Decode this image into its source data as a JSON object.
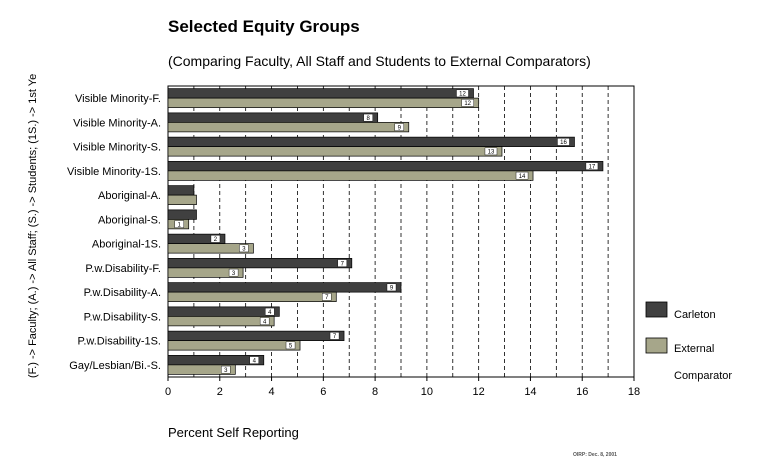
{
  "colors": {
    "carleton": "#404040",
    "external": "#a6a68a",
    "label_box": "#ffffff",
    "grid": "#000000"
  },
  "chart_data": {
    "type": "bar",
    "orientation": "horizontal",
    "title": "Selected Equity Groups",
    "subtitle": "(Comparing Faculty, All Staff and Students to External Comparators)",
    "xlabel": "Percent Self Reporting",
    "ylabel": "(F.) -> Faculty; (A.) -> All Staff; (S.) -> Students; (1S.) -> 1st Ye",
    "xlim": [
      0,
      18
    ],
    "xticks": [
      "0",
      "2",
      "4",
      "6",
      "8",
      "10",
      "12",
      "14",
      "16",
      "18"
    ],
    "grid": "vertical dashed lines at each unit",
    "legend_position": "right",
    "note": "OIRP: Dec. 8, 2001",
    "categories": [
      "Visible Minority-F.",
      "Visible Minority-A.",
      "Visible Minority-S.",
      "Visible Minority-1S.",
      "Aboriginal-A.",
      "Aboriginal-S.",
      "Aboriginal-1S.",
      "P.w.Disability-F.",
      "P.w.Disability-A.",
      "P.w.Disability-S.",
      "P.w.Disability-1S.",
      "Gay/Lesbian/Bi.-S."
    ],
    "series": [
      {
        "name": "Carleton",
        "values": [
          11.8,
          8.1,
          15.7,
          16.8,
          1.0,
          1.1,
          2.2,
          7.1,
          9.0,
          4.3,
          6.8,
          3.7
        ],
        "labels": [
          "12",
          "8",
          "16",
          "17",
          "",
          "",
          "2",
          "7",
          "9",
          "4",
          "7",
          "4"
        ]
      },
      {
        "name": "External Comparator",
        "values": [
          12.0,
          9.3,
          12.9,
          14.1,
          1.1,
          0.8,
          3.3,
          2.9,
          6.5,
          4.1,
          5.1,
          2.6
        ],
        "labels": [
          "12",
          "9",
          "13",
          "14",
          "",
          "1",
          "3",
          "3",
          "7",
          "4",
          "5",
          "3"
        ]
      }
    ]
  },
  "legend": {
    "carleton": "Carleton",
    "external_line1": "External",
    "external_line2": "Comparator"
  }
}
